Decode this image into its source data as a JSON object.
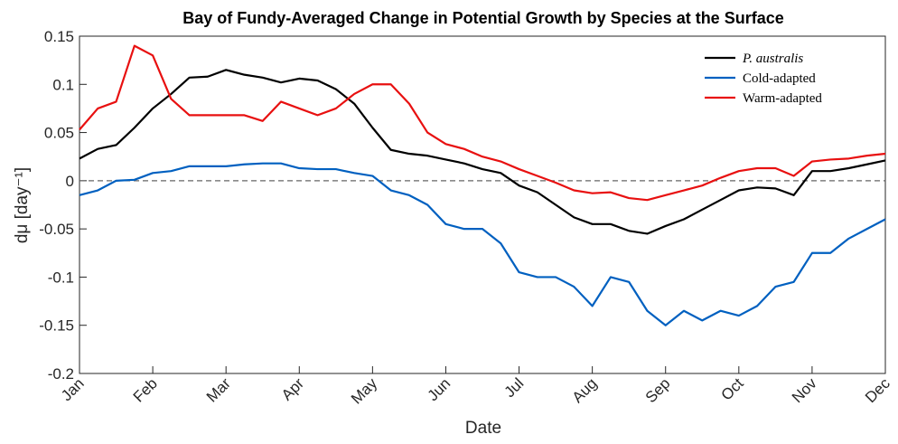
{
  "chart_data": {
    "type": "line",
    "title": "Bay of Fundy-Averaged Change in Potential Growth by Species at the Surface",
    "x_label": "Date",
    "y_label": "dμ [day⁻¹]",
    "categories": [
      "Jan",
      null,
      null,
      null,
      "Feb",
      null,
      null,
      null,
      "Mar",
      null,
      null,
      null,
      "Apr",
      null,
      null,
      null,
      "May",
      null,
      null,
      null,
      "Jun",
      null,
      null,
      null,
      "Jul",
      null,
      null,
      null,
      "Aug",
      null,
      null,
      null,
      "Sep",
      null,
      null,
      null,
      "Oct",
      null,
      null,
      null,
      "Nov",
      null,
      null,
      null,
      "Dec"
    ],
    "series": [
      {
        "name": "P. australis",
        "color": "#000000",
        "values": [
          0.023,
          0.033,
          0.037,
          0.055,
          0.075,
          0.09,
          0.107,
          0.108,
          0.115,
          0.11,
          0.107,
          0.102,
          0.106,
          0.104,
          0.095,
          0.08,
          0.055,
          0.032,
          0.028,
          0.026,
          0.022,
          0.018,
          0.012,
          0.008,
          -0.005,
          -0.012,
          -0.025,
          -0.038,
          -0.045,
          -0.045,
          -0.052,
          -0.055,
          -0.047,
          -0.04,
          -0.03,
          -0.02,
          -0.01,
          -0.007,
          -0.008,
          -0.015,
          0.01,
          0.01,
          0.013,
          0.017,
          0.021
        ]
      },
      {
        "name": "Cold-adapted",
        "color": "#0060c0",
        "values": [
          -0.015,
          -0.01,
          0,
          0.001,
          0.008,
          0.01,
          0.015,
          0.015,
          0.015,
          0.017,
          0.018,
          0.018,
          0.013,
          0.012,
          0.012,
          0.008,
          0.005,
          -0.01,
          -0.015,
          -0.025,
          -0.045,
          -0.05,
          -0.05,
          -0.065,
          -0.095,
          -0.1,
          -0.1,
          -0.11,
          -0.13,
          -0.1,
          -0.105,
          -0.135,
          -0.15,
          -0.135,
          -0.145,
          -0.135,
          -0.14,
          -0.13,
          -0.11,
          -0.105,
          -0.075,
          -0.075,
          -0.06,
          -0.05,
          -0.04
        ]
      },
      {
        "name": "Warm-adapted",
        "color": "#e81010",
        "values": [
          0.053,
          0.075,
          0.082,
          0.14,
          0.13,
          0.085,
          0.068,
          0.068,
          0.068,
          0.068,
          0.062,
          0.082,
          0.075,
          0.068,
          0.075,
          0.09,
          0.1,
          0.1,
          0.08,
          0.05,
          0.038,
          0.033,
          0.025,
          0.02,
          0.012,
          0.005,
          -0.002,
          -0.01,
          -0.013,
          -0.012,
          -0.018,
          -0.02,
          -0.015,
          -0.01,
          -0.005,
          0.003,
          0.01,
          0.013,
          0.013,
          0.005,
          0.02,
          0.022,
          0.023,
          0.026,
          0.028
        ]
      }
    ],
    "ylim": [
      -0.2,
      0.15
    ],
    "yticks": [
      -0.2,
      -0.15,
      -0.1,
      -0.05,
      0,
      0.05,
      0.1,
      0.15
    ],
    "hline": 0,
    "legend": "top-right"
  }
}
